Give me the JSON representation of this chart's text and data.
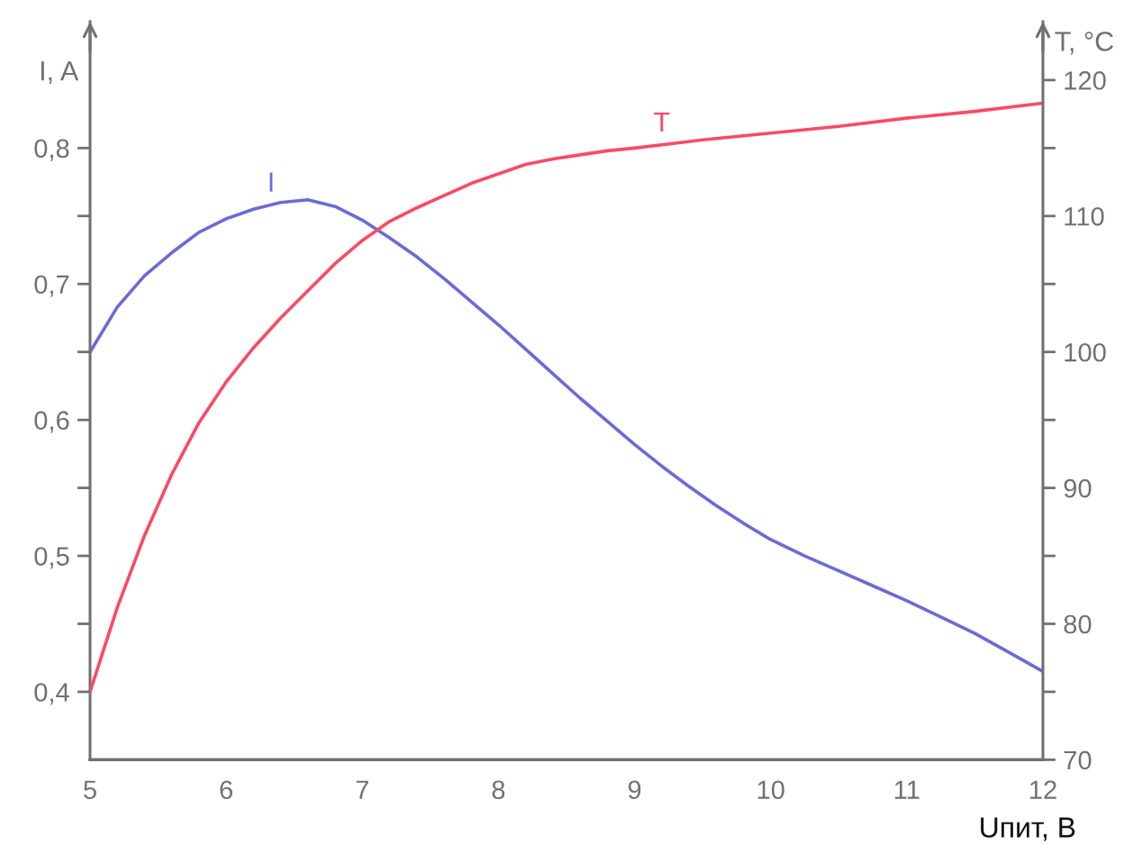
{
  "chart_data": {
    "type": "line",
    "xlabel": "Uпит, В",
    "ylabel": "I, A",
    "y2label": "T, °C",
    "xlim": [
      5,
      12
    ],
    "xticks": [
      5,
      6,
      7,
      8,
      9,
      10,
      11,
      12
    ],
    "ylim": [
      0.35,
      0.893
    ],
    "yticks": [
      {
        "value": 0.4,
        "label": "0,4"
      },
      {
        "value": 0.45,
        "label": null
      },
      {
        "value": 0.5,
        "label": "0,5"
      },
      {
        "value": 0.55,
        "label": null
      },
      {
        "value": 0.6,
        "label": "0,6"
      },
      {
        "value": 0.65,
        "label": null
      },
      {
        "value": 0.7,
        "label": "0,7"
      },
      {
        "value": 0.75,
        "label": null
      },
      {
        "value": 0.8,
        "label": "0,8"
      }
    ],
    "y2lim": [
      70,
      124.3
    ],
    "y2ticks": [
      70,
      {
        "value": 75,
        "label": null
      },
      80,
      {
        "value": 85,
        "label": null
      },
      90,
      {
        "value": 95,
        "label": null
      },
      100,
      {
        "value": 105,
        "label": null
      },
      110,
      {
        "value": 115,
        "label": null
      },
      120
    ],
    "grid": false,
    "legend": false,
    "series": [
      {
        "name": "I",
        "color": "#6b6bd6",
        "x": [
          5.0,
          5.2,
          5.4,
          5.6,
          5.8,
          6.0,
          6.2,
          6.4,
          6.6,
          6.8,
          7.0,
          7.2,
          7.4,
          7.6,
          7.8,
          8.0,
          8.2,
          8.4,
          8.6,
          8.8,
          9.0,
          9.2,
          9.4,
          9.6,
          9.8,
          10.0,
          10.25,
          10.5,
          10.75,
          11.0,
          11.25,
          11.5,
          11.75,
          12.0
        ],
        "values": [
          0.65,
          0.683,
          0.706,
          0.723,
          0.738,
          0.748,
          0.755,
          0.76,
          0.762,
          0.757,
          0.747,
          0.734,
          0.72,
          0.704,
          0.687,
          0.67,
          0.652,
          0.634,
          0.616,
          0.599,
          0.582,
          0.566,
          0.551,
          0.537,
          0.524,
          0.512,
          0.5,
          0.489,
          0.478,
          0.467,
          0.455,
          0.443,
          0.429,
          0.415
        ]
      },
      {
        "name": "T",
        "color": "#fa4a64",
        "axis": "y2",
        "x": [
          5.0,
          5.2,
          5.4,
          5.6,
          5.8,
          6.0,
          6.2,
          6.4,
          6.6,
          6.8,
          7.0,
          7.2,
          7.4,
          7.6,
          7.8,
          8.0,
          8.2,
          8.4,
          8.6,
          8.8,
          9.0,
          9.5,
          10.0,
          10.5,
          11.0,
          11.5,
          12.0
        ],
        "values": [
          75.0,
          81.2,
          86.5,
          91.0,
          94.8,
          97.8,
          100.3,
          102.5,
          104.5,
          106.5,
          108.2,
          109.6,
          110.6,
          111.5,
          112.4,
          113.1,
          113.8,
          114.2,
          114.5,
          114.8,
          115.0,
          115.6,
          116.1,
          116.6,
          117.2,
          117.7,
          118.3
        ]
      }
    ]
  }
}
